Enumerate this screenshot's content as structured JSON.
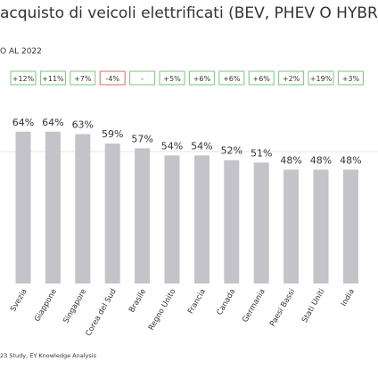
{
  "chart_data": {
    "type": "bar",
    "title": "acquisto di veicoli elettrificati (BEV, PHEV O HYBRI",
    "subtitle": "O AL 2022",
    "categories": [
      "Svezia",
      "Giappone",
      "Singapore",
      "Corea del Sud",
      "Brasile",
      "Regno Unito",
      "Francia",
      "Canada",
      "Germania",
      "Paesi Bassi",
      "Stati Uniti",
      "India"
    ],
    "values": [
      64,
      64,
      63,
      59,
      57,
      54,
      54,
      52,
      51,
      48,
      48,
      48
    ],
    "value_labels": [
      "64%",
      "64%",
      "63%",
      "59%",
      "57%",
      "54%",
      "54%",
      "52%",
      "51%",
      "48%",
      "48%",
      "48%"
    ],
    "changes": [
      "+12%",
      "+11%",
      "+7%",
      "-4%",
      "-",
      "+5%",
      "+6%",
      "+6%",
      "+6%",
      "+2%",
      "+19%",
      "+3%"
    ],
    "change_colors": [
      "#77c777",
      "#77c777",
      "#77c777",
      "#e06666",
      "#77c777",
      "#77c777",
      "#77c777",
      "#77c777",
      "#77c777",
      "#77c777",
      "#77c777",
      "#77c777"
    ],
    "color": "#c3c3c9",
    "ylim": [
      0,
      100
    ],
    "source": "23 Study, EY Knowledge Analysis"
  }
}
